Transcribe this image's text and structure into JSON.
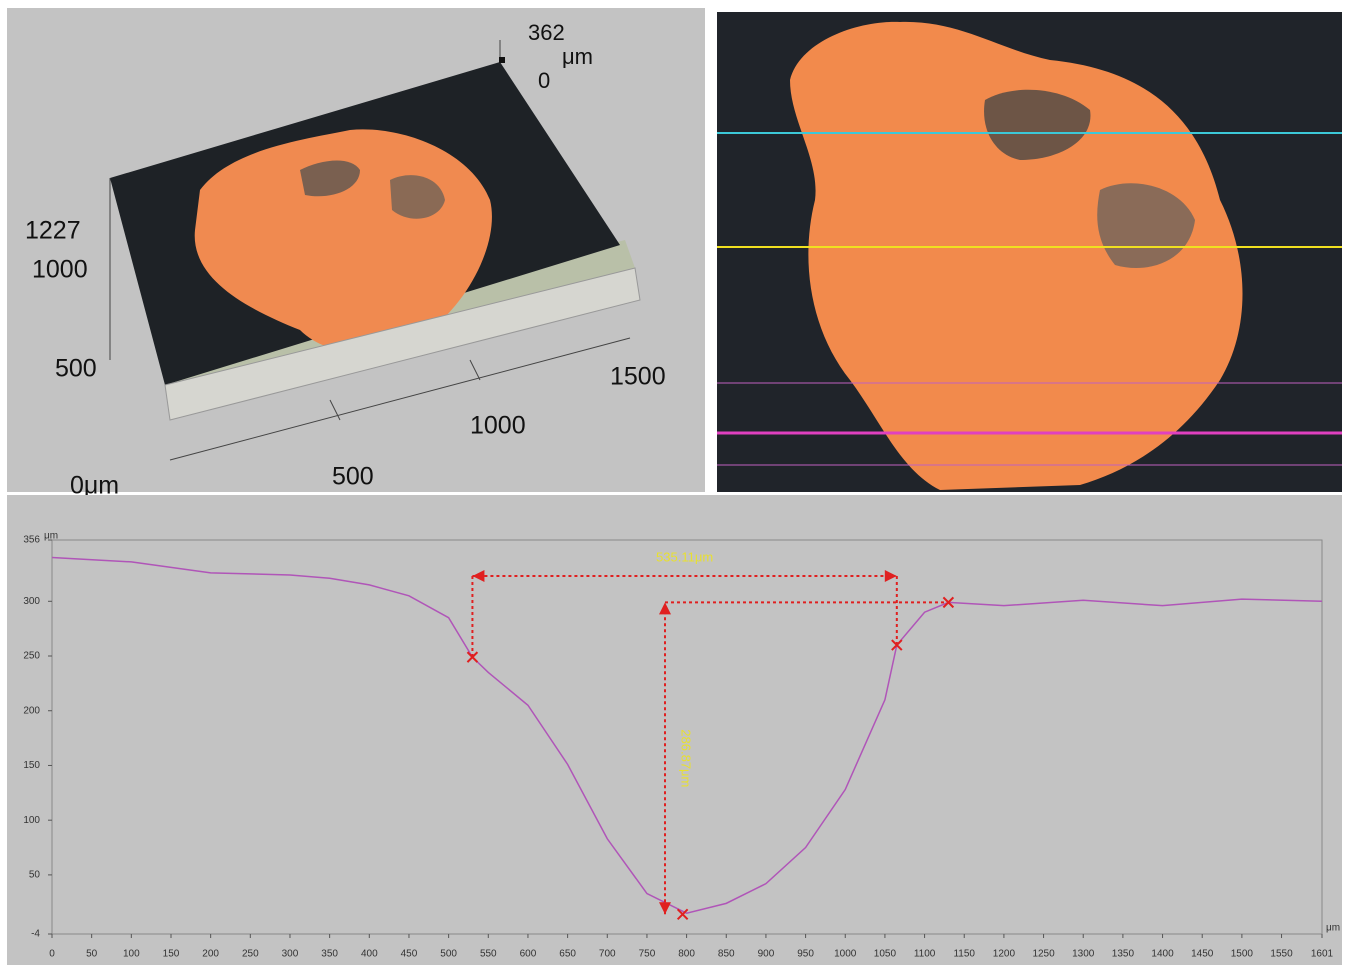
{
  "view_3d": {
    "z_max": "362",
    "z_unit": "μm",
    "z_min": "0",
    "y_labels": [
      "1227",
      "1000",
      "500"
    ],
    "x_labels": [
      "0μm",
      "500",
      "1000",
      "1500"
    ]
  },
  "chart_data": {
    "type": "line",
    "x": [
      0,
      100,
      200,
      300,
      350,
      400,
      450,
      500,
      530,
      550,
      600,
      650,
      700,
      750,
      800,
      850,
      900,
      950,
      1000,
      1050,
      1065,
      1100,
      1130,
      1200,
      1300,
      1400,
      1500,
      1601
    ],
    "values": [
      340,
      336,
      326,
      324,
      321,
      315,
      305,
      285,
      249,
      235,
      205,
      151,
      83,
      33,
      15,
      24,
      42,
      75,
      128,
      210,
      260,
      290,
      299,
      296,
      301,
      296,
      302,
      300
    ],
    "color": "#b055b8",
    "y_unit": "μm",
    "x_unit": "μm",
    "xlim": [
      0,
      1601
    ],
    "ylim": [
      -4,
      356
    ],
    "xticks": [
      0,
      50,
      100,
      150,
      200,
      250,
      300,
      350,
      400,
      450,
      500,
      550,
      600,
      650,
      700,
      750,
      800,
      850,
      900,
      950,
      1000,
      1050,
      1100,
      1150,
      1200,
      1250,
      1300,
      1350,
      1400,
      1450,
      1500,
      1550,
      1601
    ],
    "yticks": [
      -4,
      50,
      100,
      150,
      200,
      250,
      300,
      356
    ],
    "markers": {
      "x": [
        530,
        1065,
        1130,
        795
      ],
      "y": [
        249,
        260,
        299,
        14
      ],
      "color": "#e02020"
    },
    "annotations": [
      "535.11μm",
      "286.87μm"
    ]
  }
}
